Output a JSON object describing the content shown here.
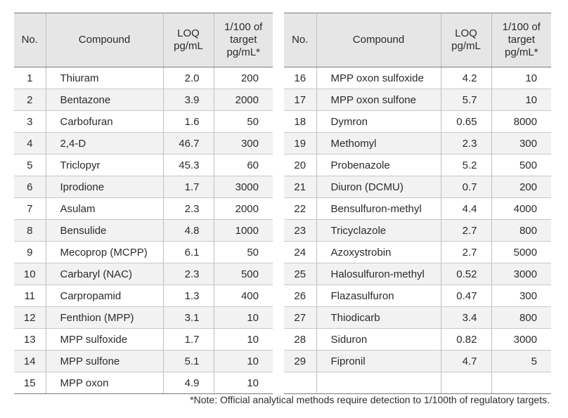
{
  "headers": {
    "no": "No.",
    "compound": "Compound",
    "loq_line1": "LOQ",
    "loq_line2": "pg/mL",
    "target_line1": "1/100 of",
    "target_line2": "target",
    "target_line3": "pg/mL*"
  },
  "left_rows": [
    {
      "no": "1",
      "compound": "Thiuram",
      "loq": "2.0",
      "target": "200"
    },
    {
      "no": "2",
      "compound": "Bentazone",
      "loq": "3.9",
      "target": "2000"
    },
    {
      "no": "3",
      "compound": "Carbofuran",
      "loq": "1.6",
      "target": "50"
    },
    {
      "no": "4",
      "compound": "2,4-D",
      "loq": "46.7",
      "target": "300"
    },
    {
      "no": "5",
      "compound": "Triclopyr",
      "loq": "45.3",
      "target": "60"
    },
    {
      "no": "6",
      "compound": "Iprodione",
      "loq": "1.7",
      "target": "3000"
    },
    {
      "no": "7",
      "compound": "Asulam",
      "loq": "2.3",
      "target": "2000"
    },
    {
      "no": "8",
      "compound": "Bensulide",
      "loq": "4.8",
      "target": "1000"
    },
    {
      "no": "9",
      "compound": "Mecoprop (MCPP)",
      "loq": "6.1",
      "target": "50"
    },
    {
      "no": "10",
      "compound": "Carbaryl (NAC)",
      "loq": "2.3",
      "target": "500"
    },
    {
      "no": "11",
      "compound": "Carpropamid",
      "loq": "1.3",
      "target": "400"
    },
    {
      "no": "12",
      "compound": "Fenthion (MPP)",
      "loq": "3.1",
      "target": "10"
    },
    {
      "no": "13",
      "compound": "MPP sulfoxide",
      "loq": "1.7",
      "target": "10"
    },
    {
      "no": "14",
      "compound": "MPP sulfone",
      "loq": "5.1",
      "target": "10"
    },
    {
      "no": "15",
      "compound": "MPP oxon",
      "loq": "4.9",
      "target": "10"
    }
  ],
  "right_rows": [
    {
      "no": "16",
      "compound": "MPP oxon sulfoxide",
      "loq": "4.2",
      "target": "10"
    },
    {
      "no": "17",
      "compound": "MPP oxon sulfone",
      "loq": "5.7",
      "target": "10"
    },
    {
      "no": "18",
      "compound": "Dymron",
      "loq": "0.65",
      "target": "8000"
    },
    {
      "no": "19",
      "compound": "Methomyl",
      "loq": "2.3",
      "target": "300"
    },
    {
      "no": "20",
      "compound": "Probenazole",
      "loq": "5.2",
      "target": "500"
    },
    {
      "no": "21",
      "compound": "Diuron (DCMU)",
      "loq": "0.7",
      "target": "200"
    },
    {
      "no": "22",
      "compound": "Bensulfuron-methyl",
      "loq": "4.4",
      "target": "4000"
    },
    {
      "no": "23",
      "compound": "Tricyclazole",
      "loq": "2.7",
      "target": "800"
    },
    {
      "no": "24",
      "compound": "Azoxystrobin",
      "loq": "2.7",
      "target": "5000"
    },
    {
      "no": "25",
      "compound": "Halosulfuron-methyl",
      "loq": "0.52",
      "target": "3000"
    },
    {
      "no": "26",
      "compound": "Flazasulfuron",
      "loq": "0.47",
      "target": "300"
    },
    {
      "no": "27",
      "compound": "Thiodicarb",
      "loq": "3.4",
      "target": "800"
    },
    {
      "no": "28",
      "compound": "Siduron",
      "loq": "0.82",
      "target": "3000"
    },
    {
      "no": "29",
      "compound": "Fipronil",
      "loq": "4.7",
      "target": "5"
    },
    {
      "no": "",
      "compound": "",
      "loq": "",
      "target": ""
    }
  ],
  "note": "*Note: Official analytical methods require detection to 1/100th of regulatory targets."
}
